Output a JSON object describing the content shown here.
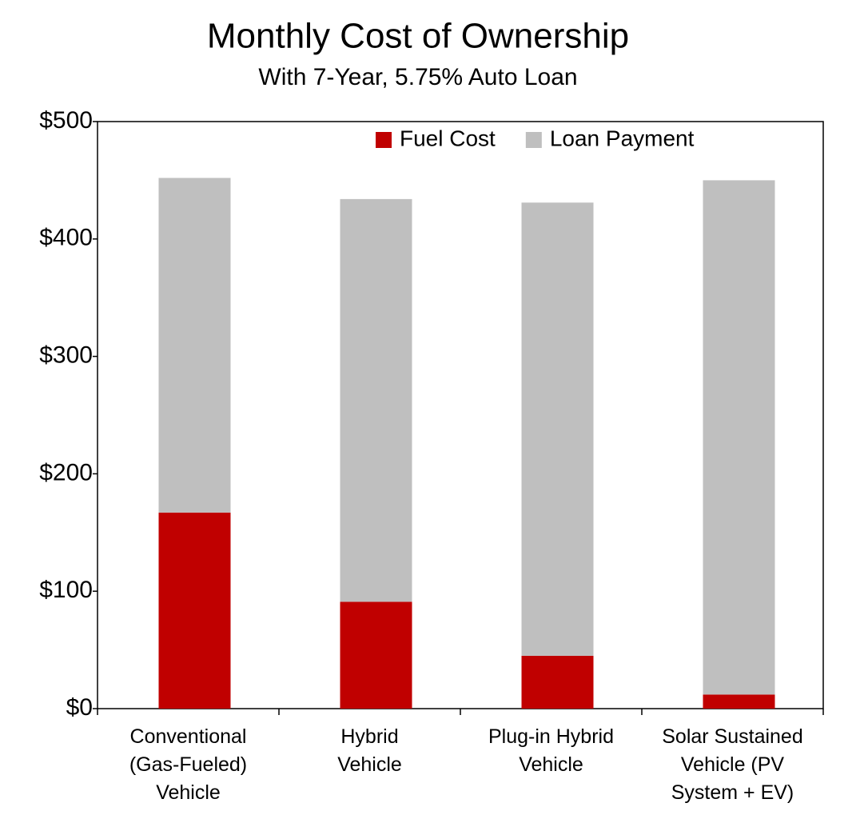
{
  "chart_data": {
    "type": "stacked_bar",
    "title": "Monthly Cost of Ownership",
    "subtitle": "With 7-Year, 5.75% Auto Loan",
    "categories": [
      "Conventional\n(Gas-Fueled)\nVehicle",
      "Hybrid\nVehicle",
      "Plug-in Hybrid\nVehicle",
      "Solar Sustained\nVehicle (PV\nSystem + EV)"
    ],
    "series": [
      {
        "name": "Fuel Cost",
        "color": "#c00000",
        "values": [
          167,
          91,
          45,
          12
        ]
      },
      {
        "name": "Loan Payment",
        "color": "#bfbfbf",
        "values": [
          285,
          343,
          386,
          438
        ]
      }
    ],
    "ylim": [
      0,
      500
    ],
    "yticks": [
      {
        "value": 0,
        "label": "$0"
      },
      {
        "value": 100,
        "label": "$100"
      },
      {
        "value": 200,
        "label": "$200"
      },
      {
        "value": 300,
        "label": "$300"
      },
      {
        "value": 400,
        "label": "$400"
      },
      {
        "value": 500,
        "label": "$500"
      }
    ],
    "legend": "top-right"
  }
}
